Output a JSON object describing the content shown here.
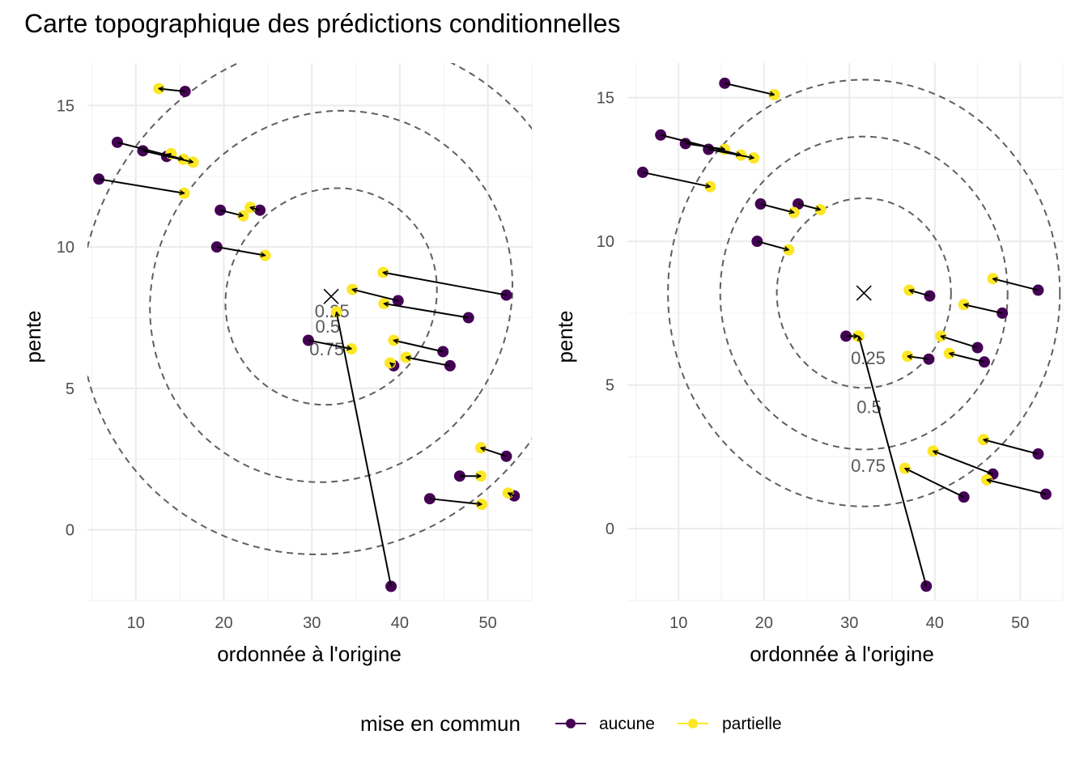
{
  "title": "Carte topographique des prédictions conditionnelles",
  "legend": {
    "title": "mise en commun",
    "items": [
      {
        "label": "aucune",
        "color": "#440154"
      },
      {
        "label": "partielle",
        "color": "#FDE725"
      }
    ]
  },
  "chart_data": [
    {
      "type": "scatter",
      "xlabel": "ordonnée à l'origine",
      "ylabel": "pente",
      "xlim": [
        4.5,
        55
      ],
      "ylim": [
        -2.5,
        16.5
      ],
      "xticks": [
        10,
        20,
        30,
        40,
        50
      ],
      "yticks": [
        0,
        5,
        10,
        15
      ],
      "center": {
        "x": 32.2,
        "y": 8.25
      },
      "contour_labels": [
        {
          "text": "0.25",
          "x": 32.3,
          "y": 7.75
        },
        {
          "text": "0.5",
          "x": 31.8,
          "y": 7.2
        },
        {
          "text": "0.75",
          "x": 31.7,
          "y": 6.4
        }
      ],
      "pairs": [
        {
          "from": [
            15.6,
            15.5
          ],
          "to": [
            12.6,
            15.6
          ]
        },
        {
          "from": [
            7.9,
            13.7
          ],
          "to": [
            15.4,
            13.1
          ]
        },
        {
          "from": [
            10.8,
            13.4
          ],
          "to": [
            16.5,
            13.0
          ]
        },
        {
          "from": [
            13.5,
            13.2
          ],
          "to": [
            14.0,
            13.3
          ]
        },
        {
          "from": [
            5.8,
            12.4
          ],
          "to": [
            15.5,
            11.9
          ]
        },
        {
          "from": [
            19.6,
            11.3
          ],
          "to": [
            22.2,
            11.1
          ]
        },
        {
          "from": [
            24.1,
            11.3
          ],
          "to": [
            23.0,
            11.4
          ]
        },
        {
          "from": [
            19.2,
            10.0
          ],
          "to": [
            24.7,
            9.7
          ]
        },
        {
          "from": [
            52.1,
            8.3
          ],
          "to": [
            38.1,
            9.1
          ]
        },
        {
          "from": [
            39.8,
            8.1
          ],
          "to": [
            34.6,
            8.5
          ]
        },
        {
          "from": [
            47.8,
            7.5
          ],
          "to": [
            38.2,
            8.0
          ]
        },
        {
          "from": [
            29.6,
            6.7
          ],
          "to": [
            34.5,
            6.4
          ]
        },
        {
          "from": [
            44.9,
            6.3
          ],
          "to": [
            39.3,
            6.7
          ]
        },
        {
          "from": [
            45.7,
            5.8
          ],
          "to": [
            40.7,
            6.1
          ]
        },
        {
          "from": [
            39.3,
            5.8
          ],
          "to": [
            38.9,
            5.9
          ]
        },
        {
          "from": [
            39.0,
            -2.0
          ],
          "to": [
            32.8,
            7.7
          ]
        },
        {
          "from": [
            52.1,
            2.6
          ],
          "to": [
            49.2,
            2.9
          ]
        },
        {
          "from": [
            46.8,
            1.9
          ],
          "to": [
            49.2,
            1.9
          ]
        },
        {
          "from": [
            43.4,
            1.1
          ],
          "to": [
            49.3,
            0.9
          ]
        },
        {
          "from": [
            53.0,
            1.2
          ],
          "to": [
            52.3,
            1.3
          ]
        }
      ]
    },
    {
      "type": "scatter",
      "xlabel": "ordonnée à l'origine",
      "ylabel": "pente",
      "xlim": [
        4,
        55
      ],
      "ylim": [
        -2.5,
        16.2
      ],
      "xticks": [
        10,
        20,
        30,
        40,
        50
      ],
      "yticks": [
        0,
        5,
        10,
        15
      ],
      "center": {
        "x": 31.7,
        "y": 8.2
      },
      "contour_labels": [
        {
          "text": "0.25",
          "x": 32.2,
          "y": 5.95
        },
        {
          "text": "0.5",
          "x": 32.3,
          "y": 4.25
        },
        {
          "text": "0.75",
          "x": 32.2,
          "y": 2.2
        }
      ],
      "pairs": [
        {
          "from": [
            15.4,
            15.5
          ],
          "to": [
            21.2,
            15.1
          ]
        },
        {
          "from": [
            7.9,
            13.7
          ],
          "to": [
            17.3,
            13.0
          ]
        },
        {
          "from": [
            10.8,
            13.4
          ],
          "to": [
            15.4,
            13.2
          ]
        },
        {
          "from": [
            13.5,
            13.2
          ],
          "to": [
            18.8,
            12.9
          ]
        },
        {
          "from": [
            5.8,
            12.4
          ],
          "to": [
            13.7,
            11.9
          ]
        },
        {
          "from": [
            19.6,
            11.3
          ],
          "to": [
            23.5,
            11.0
          ]
        },
        {
          "from": [
            24.0,
            11.3
          ],
          "to": [
            26.6,
            11.1
          ]
        },
        {
          "from": [
            19.2,
            10.0
          ],
          "to": [
            22.9,
            9.7
          ]
        },
        {
          "from": [
            52.1,
            8.3
          ],
          "to": [
            46.8,
            8.7
          ]
        },
        {
          "from": [
            39.4,
            8.1
          ],
          "to": [
            37.0,
            8.3
          ]
        },
        {
          "from": [
            47.9,
            7.5
          ],
          "to": [
            43.4,
            7.8
          ]
        },
        {
          "from": [
            29.6,
            6.7
          ],
          "to": [
            31.0,
            6.7
          ]
        },
        {
          "from": [
            45.0,
            6.3
          ],
          "to": [
            40.7,
            6.7
          ]
        },
        {
          "from": [
            45.8,
            5.8
          ],
          "to": [
            41.7,
            6.1
          ]
        },
        {
          "from": [
            39.3,
            5.9
          ],
          "to": [
            36.8,
            6.0
          ]
        },
        {
          "from": [
            39.0,
            -2.0
          ],
          "to": [
            31.1,
            6.7
          ]
        },
        {
          "from": [
            52.1,
            2.6
          ],
          "to": [
            45.7,
            3.1
          ]
        },
        {
          "from": [
            46.8,
            1.9
          ],
          "to": [
            39.8,
            2.7
          ]
        },
        {
          "from": [
            43.4,
            1.1
          ],
          "to": [
            36.5,
            2.1
          ]
        },
        {
          "from": [
            53.0,
            1.2
          ],
          "to": [
            46.1,
            1.7
          ]
        }
      ]
    }
  ]
}
